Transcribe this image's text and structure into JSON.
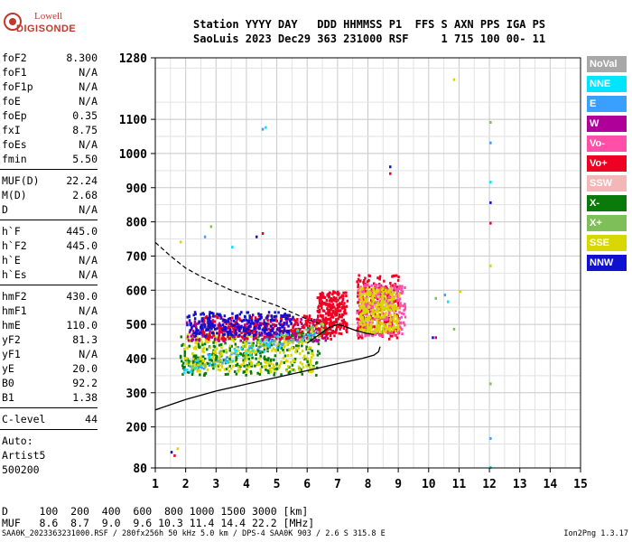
{
  "logo": {
    "line1": "Lowell",
    "line2": "DIGISONDE"
  },
  "header": {
    "line1": "Station YYYY DAY   DDD HHMMSS P1  FFS S AXN PPS IGA PS",
    "line2": "SaoLuis 2023 Dec29 363 231000 RSF     1 715 100 00- 11"
  },
  "params_group1": [
    {
      "k": "foF2",
      "v": "8.300"
    },
    {
      "k": "foF1",
      "v": "N/A"
    },
    {
      "k": "foF1p",
      "v": "N/A"
    },
    {
      "k": "foE",
      "v": "N/A"
    },
    {
      "k": "foEp",
      "v": "0.35"
    },
    {
      "k": "fxI",
      "v": "8.75"
    },
    {
      "k": "foEs",
      "v": "N/A"
    },
    {
      "k": "fmin",
      "v": "5.50"
    }
  ],
  "params_group2": [
    {
      "k": "MUF(D)",
      "v": "22.24"
    },
    {
      "k": "M(D)",
      "v": "2.68"
    },
    {
      "k": "D",
      "v": "N/A"
    }
  ],
  "params_group3": [
    {
      "k": "h`F",
      "v": "445.0"
    },
    {
      "k": "h`F2",
      "v": "445.0"
    },
    {
      "k": "h`E",
      "v": "N/A"
    },
    {
      "k": "h`Es",
      "v": "N/A"
    }
  ],
  "params_group4": [
    {
      "k": "hmF2",
      "v": "430.0"
    },
    {
      "k": "hmF1",
      "v": "N/A"
    },
    {
      "k": "hmE",
      "v": "110.0"
    },
    {
      "k": "yF2",
      "v": "81.3"
    },
    {
      "k": "yF1",
      "v": "N/A"
    },
    {
      "k": "yE",
      "v": "20.0"
    },
    {
      "k": "B0",
      "v": "92.2"
    },
    {
      "k": "B1",
      "v": "1.38"
    }
  ],
  "c_level": {
    "k": "C-level",
    "v": "44"
  },
  "auto": {
    "line1": "Auto:",
    "line2": "Artist5",
    "line3": "500200"
  },
  "legend": [
    {
      "label": "NoVal",
      "color": "#a8a8a8",
      "text_color": "#ffffff"
    },
    {
      "label": "NNE",
      "color": "#00e5ff",
      "text_color": "#ffffff"
    },
    {
      "label": "E",
      "color": "#3aa0ff",
      "text_color": "#ffffff"
    },
    {
      "label": "W",
      "color": "#b0009a",
      "text_color": "#ffffff"
    },
    {
      "label": "Vo-",
      "color": "#ff4fa8",
      "text_color": "#ffffff"
    },
    {
      "label": "Vo+",
      "color": "#ee0022",
      "text_color": "#ffffff"
    },
    {
      "label": "SSW",
      "color": "#f4b6b6",
      "text_color": "#ffffff"
    },
    {
      "label": "X-",
      "color": "#0a7a0a",
      "text_color": "#ffffff"
    },
    {
      "label": "X+",
      "color": "#7fbf5a",
      "text_color": "#ffffff"
    },
    {
      "label": "SSE",
      "color": "#d8d800",
      "text_color": "#ffffff"
    },
    {
      "label": "NNW",
      "color": "#1010d0",
      "text_color": "#ffffff"
    }
  ],
  "bottom": {
    "line1": "D     100  200  400  600  800 1000 1500 3000 [km]",
    "line2": "MUF   8.6  8.7  9.0  9.6 10.3 11.4 14.4 22.2 [MHz]"
  },
  "footer": {
    "left": "SAA0K_2023363231000.RSF / 280fx256h 50 kHz 5.0 km / DPS-4 SAA0K 903 / 2.6 S 315.8 E",
    "right": "Ion2Png 1.3.17"
  },
  "chart_data": {
    "type": "scatter",
    "x_ticks": [
      "1",
      "2",
      "3",
      "4",
      "5",
      "6",
      "7",
      "8",
      "9",
      "10",
      "11",
      "12",
      "13",
      "14",
      "15"
    ],
    "y_ticks": [
      "80",
      "200",
      "300",
      "400",
      "500",
      "600",
      "700",
      "800",
      "900",
      "1000",
      "1100",
      "1280"
    ],
    "xlim": [
      1,
      15
    ],
    "ylim": [
      80,
      1280
    ],
    "grid": true,
    "echo_bands": [
      {
        "f0": 1.8,
        "f1": 6.5,
        "h0": 355,
        "h1": 470,
        "color": "#0a7a0a"
      },
      {
        "f0": 1.9,
        "f1": 6.2,
        "h0": 365,
        "h1": 480,
        "color": "#d8d800"
      },
      {
        "f0": 2.0,
        "f1": 6.6,
        "h0": 455,
        "h1": 520,
        "color": "#b0009a"
      },
      {
        "f0": 2.5,
        "f1": 6.8,
        "h0": 460,
        "h1": 530,
        "color": "#ee0022"
      },
      {
        "f0": 6.3,
        "f1": 7.3,
        "h0": 470,
        "h1": 600,
        "color": "#ee0022"
      },
      {
        "f0": 7.6,
        "f1": 9.0,
        "h0": 460,
        "h1": 650,
        "color": "#ee0022"
      },
      {
        "f0": 7.6,
        "f1": 9.2,
        "h0": 470,
        "h1": 620,
        "color": "#ff4fa8"
      },
      {
        "f0": 7.7,
        "f1": 9.0,
        "h0": 480,
        "h1": 610,
        "color": "#d8d800"
      },
      {
        "f0": 2.0,
        "f1": 5.5,
        "h0": 470,
        "h1": 540,
        "color": "#1010d0"
      }
    ],
    "profile_solid": [
      [
        1.0,
        250
      ],
      [
        2.0,
        280
      ],
      [
        3.0,
        305
      ],
      [
        4.0,
        325
      ],
      [
        5.0,
        345
      ],
      [
        6.0,
        365
      ],
      [
        7.0,
        385
      ],
      [
        7.8,
        400
      ],
      [
        8.2,
        410
      ],
      [
        8.35,
        420
      ],
      [
        8.4,
        435
      ]
    ],
    "trace_solid": [
      [
        6.0,
        445
      ],
      [
        6.4,
        470
      ],
      [
        6.7,
        490
      ],
      [
        7.0,
        500
      ],
      [
        7.3,
        492
      ],
      [
        7.6,
        482
      ],
      [
        7.9,
        475
      ],
      [
        8.2,
        470
      ]
    ],
    "profile_dashed": [
      [
        1.0,
        740
      ],
      [
        1.5,
        700
      ],
      [
        2.0,
        665
      ],
      [
        2.5,
        640
      ],
      [
        3.0,
        620
      ],
      [
        3.5,
        600
      ],
      [
        4.0,
        585
      ],
      [
        4.5,
        570
      ],
      [
        5.0,
        555
      ],
      [
        5.5,
        535
      ],
      [
        6.0,
        515
      ],
      [
        6.5,
        500
      ]
    ],
    "scattered_points": [
      [
        4.5,
        1075
      ],
      [
        4.6,
        1080
      ],
      [
        8.7,
        965
      ],
      [
        8.7,
        945
      ],
      [
        10.8,
        1220
      ],
      [
        2.8,
        790
      ],
      [
        2.6,
        760
      ],
      [
        3.5,
        730
      ],
      [
        4.3,
        760
      ],
      [
        4.5,
        770
      ],
      [
        1.8,
        745
      ],
      [
        12.0,
        1095
      ],
      [
        12.0,
        1035
      ],
      [
        12.0,
        920
      ],
      [
        12.0,
        860
      ],
      [
        12.0,
        800
      ],
      [
        12.0,
        675
      ],
      [
        12.0,
        330
      ],
      [
        12.0,
        170
      ],
      [
        12.0,
        85
      ],
      [
        1.5,
        130
      ],
      [
        1.6,
        120
      ],
      [
        1.7,
        140
      ],
      [
        10.2,
        580
      ],
      [
        10.5,
        590
      ],
      [
        10.6,
        570
      ],
      [
        10.1,
        465
      ],
      [
        10.2,
        465
      ],
      [
        11.0,
        600
      ],
      [
        10.8,
        490
      ]
    ]
  }
}
